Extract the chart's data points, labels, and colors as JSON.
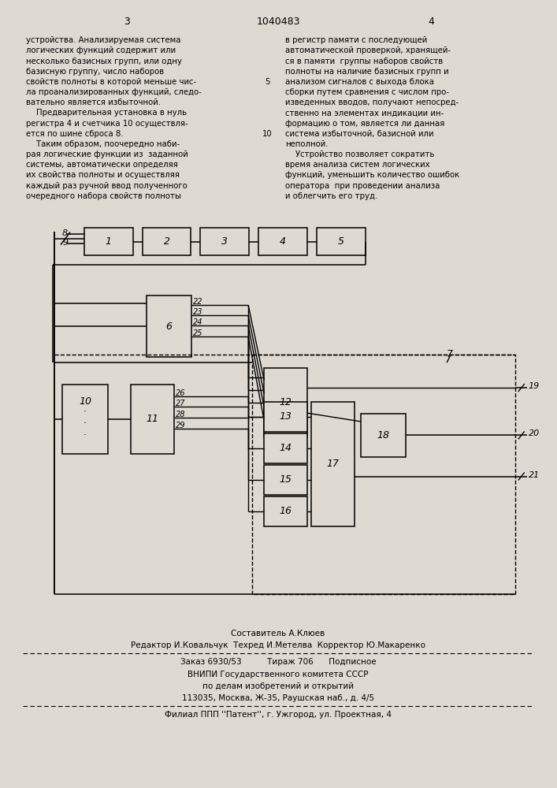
{
  "page_width": 7.07,
  "page_height": 10.0,
  "bg_color": "#dedad2",
  "header": {
    "left_num": "3",
    "center_num": "1040483",
    "right_num": "4"
  },
  "left_text": "устройства. Анализируемая система\nлогических функций содержит или\nнесколько базисных групп, или одну\nбазисную группу, число наборов\nсвойств полноты в которой меньше чис-\nла проанализированных функций, следо-\nвательно является избыточной.\n    Предварительная установка в нуль\nрегистра 4 и счетчика 10 осуществля-\nется по шине сброса 8.\n    Таким образом, поочередно наби-\nрая логические функции из  заданной\nсистемы, автоматически определяя\nих свойства полноты и осуществляя\nкаждый раз ручной ввод полученного\nочередного набора свойств полноты",
  "right_text": "в регистр памяти с последующей\nавтоматической проверкой, хранящей-\nся в памяти  группы наборов свойств\nполноты на наличие базисных групп и\nанализом сигналов с выхода блока\nсборки путем сравнения с числом про-\nизведенных вводов, получают непосред-\nственно на элементах индикации ин-\nформацию о том, является ли данная\nсистема избыточной, базисной или\nнеполной.\n    Устройство позволяет сократить\nвремя анализа систем логических\nфункций, уменьшить количество ошибок\nоператора  при проведении анализа\nи облегчить его труд.",
  "footer_line1": "Составитель А.Клюев",
  "footer_line2": "Редактор И.Ковальчук  Техред И.Метелва  Корректор Ю.Макаренко",
  "footer_line3": "Заказ 6930/53          Тираж 706      Подписное",
  "footer_line4": "ВНИПИ Государственного комитета СССР",
  "footer_line5": "по делам изобретений и открытий",
  "footer_line6": "113035, Москва, Ж-35, Раушская наб., д. 4/5",
  "footer_line7": "Филиал ППП ''Патент'', г. Ужгород, ул. Проектная, 4"
}
